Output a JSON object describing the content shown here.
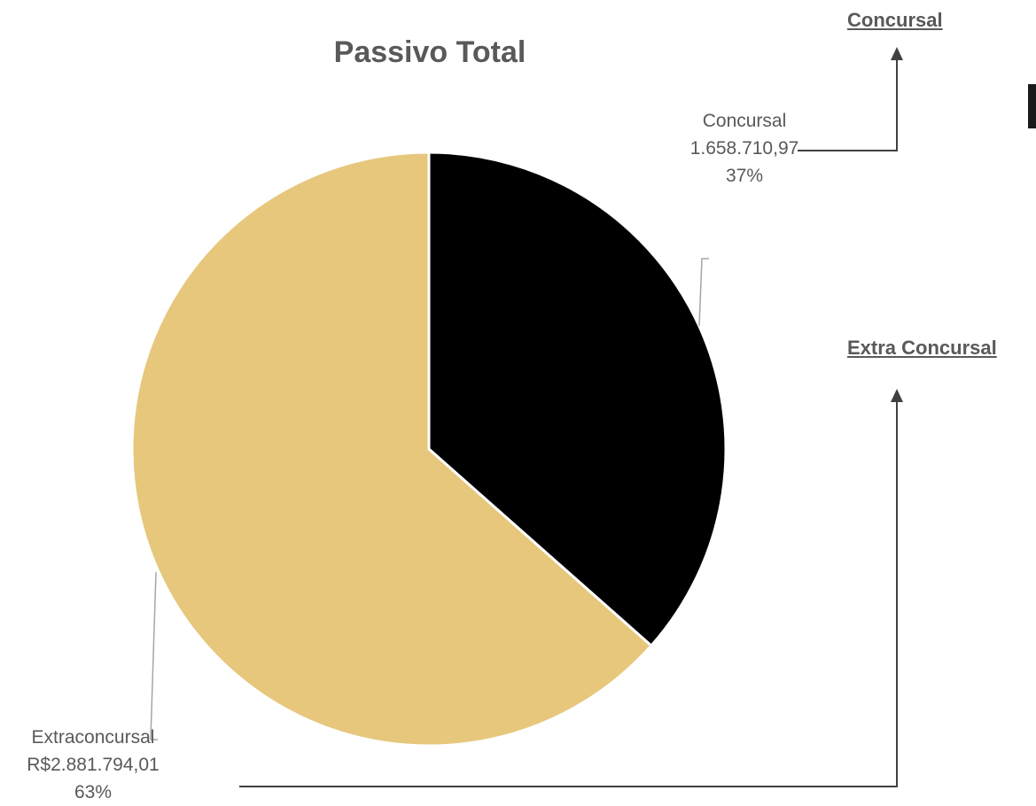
{
  "nav": {
    "concursal_link": "Concursal",
    "extra_concursal_link": "Extra Concursal"
  },
  "colors": {
    "concursal": "#000000",
    "extraconcursal": "#E6C77C",
    "text": "#595959",
    "arrow": "#404040"
  },
  "chart_data": {
    "type": "pie",
    "title": "Passivo Total",
    "slices": [
      {
        "name": "Concursal",
        "value_label": "1.658.710,97",
        "value": 1658710.97,
        "percent_label": "37%"
      },
      {
        "name": "Extraconcursal",
        "value_label": "R$2.881.794,01",
        "value": 2881794.01,
        "percent_label": "63%"
      }
    ]
  }
}
